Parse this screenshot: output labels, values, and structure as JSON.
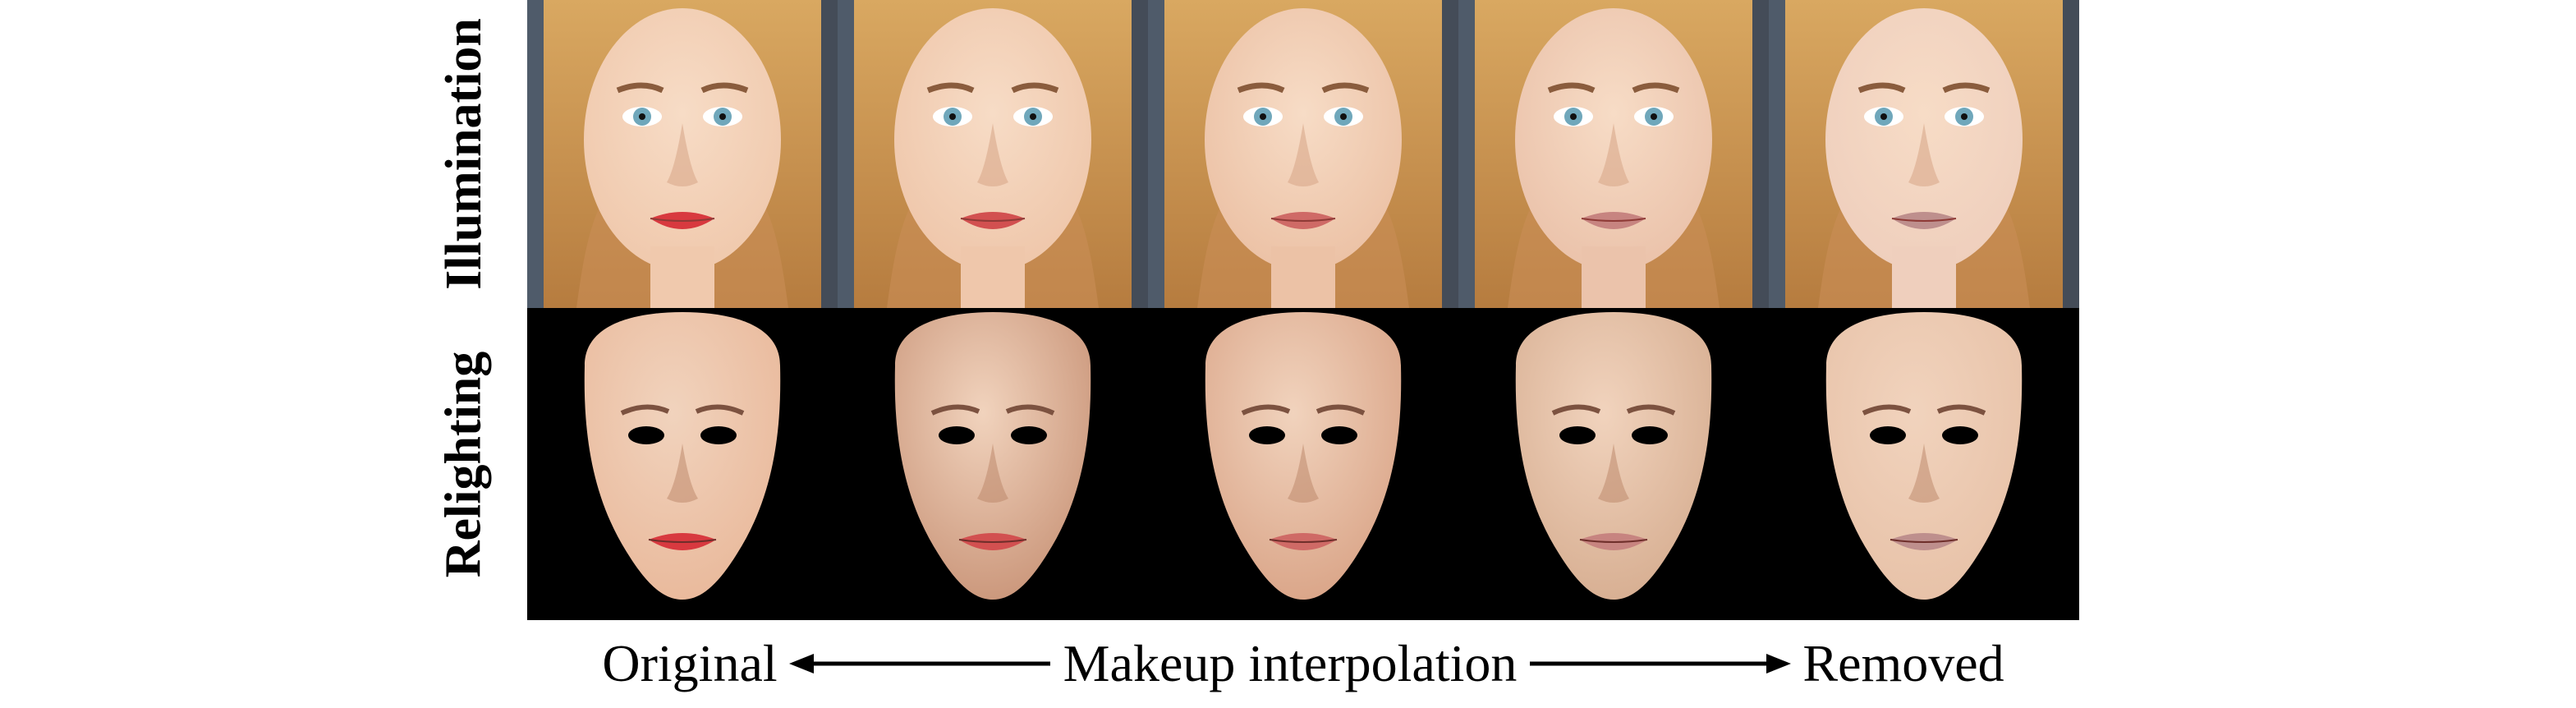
{
  "figure": {
    "row_labels": {
      "illumination": "Illumination",
      "relighting": "Relighting"
    },
    "caption": {
      "left": "Original",
      "center": "Makeup interpolation",
      "right": "Removed"
    },
    "columns": [
      {
        "step": 0,
        "lip": "#d8393f",
        "skin": "#f0c9ad",
        "relight_skin": "#e9b89a"
      },
      {
        "step": 1,
        "lip": "#d25050",
        "skin": "#efc7ab",
        "relight_skin": "#c99478"
      },
      {
        "step": 2,
        "lip": "#cf6a66",
        "skin": "#ecc2a6",
        "relight_skin": "#d9a386"
      },
      {
        "step": 3,
        "lip": "#c78480",
        "skin": "#ebc3ab",
        "relight_skin": "#d6ad90"
      },
      {
        "step": 4,
        "lip": "#be8f8d",
        "skin": "#efcfbd",
        "relight_skin": "#e7c1a7"
      }
    ],
    "colors": {
      "hair": "#d9a861",
      "hair_dark": "#b67c3f",
      "eye": "#6fa7bb",
      "background_relight": "#000000"
    }
  }
}
